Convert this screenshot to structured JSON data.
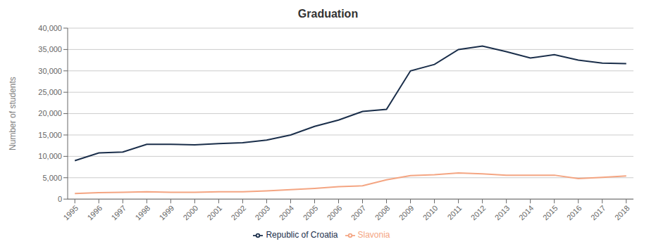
{
  "chart_data": {
    "type": "line",
    "title": "Graduation",
    "y_label": "Number of students",
    "x": [
      1995,
      1996,
      1997,
      1998,
      1999,
      2000,
      2001,
      2002,
      2003,
      2004,
      2005,
      2006,
      2007,
      2008,
      2009,
      2010,
      2011,
      2012,
      2013,
      2014,
      2015,
      2016,
      2017,
      2018
    ],
    "series": [
      {
        "name": "Republic of Croatia",
        "color": "#1a2e4a",
        "values": [
          9000,
          10800,
          11000,
          12800,
          12800,
          12700,
          13000,
          13200,
          13800,
          15000,
          17000,
          18500,
          20500,
          21000,
          30000,
          31500,
          35000,
          35800,
          34500,
          33000,
          33800,
          32500,
          31800,
          31700
        ]
      },
      {
        "name": "Slavonia",
        "color": "#f4a582",
        "values": [
          1300,
          1500,
          1600,
          1700,
          1600,
          1600,
          1700,
          1700,
          1900,
          2200,
          2500,
          2900,
          3100,
          4500,
          5500,
          5700,
          6100,
          5900,
          5600,
          5600,
          5600,
          4800,
          5100,
          5400
        ]
      }
    ],
    "xlim": [
      1994.7,
      2018.3
    ],
    "xticks": [
      1995,
      1996,
      1997,
      1998,
      1999,
      2000,
      2001,
      2002,
      2003,
      2004,
      2005,
      2006,
      2007,
      2008,
      2009,
      2010,
      2011,
      2012,
      2013,
      2014,
      2015,
      2016,
      2017,
      2018
    ],
    "ylim": [
      0,
      40000
    ],
    "yticks": [
      0,
      {
        "value": 5000,
        "label": "5,000"
      },
      {
        "value": 10000,
        "label": "10,000"
      },
      {
        "value": 15000,
        "label": "15,000"
      },
      {
        "value": 20000,
        "label": "20,000"
      },
      {
        "value": 25000,
        "label": "25,000"
      },
      {
        "value": 30000,
        "label": "30,000"
      },
      {
        "value": 35000,
        "label": "35,000"
      },
      {
        "value": 40000,
        "label": "40,000"
      }
    ],
    "grid": true,
    "legend": "bottom"
  }
}
